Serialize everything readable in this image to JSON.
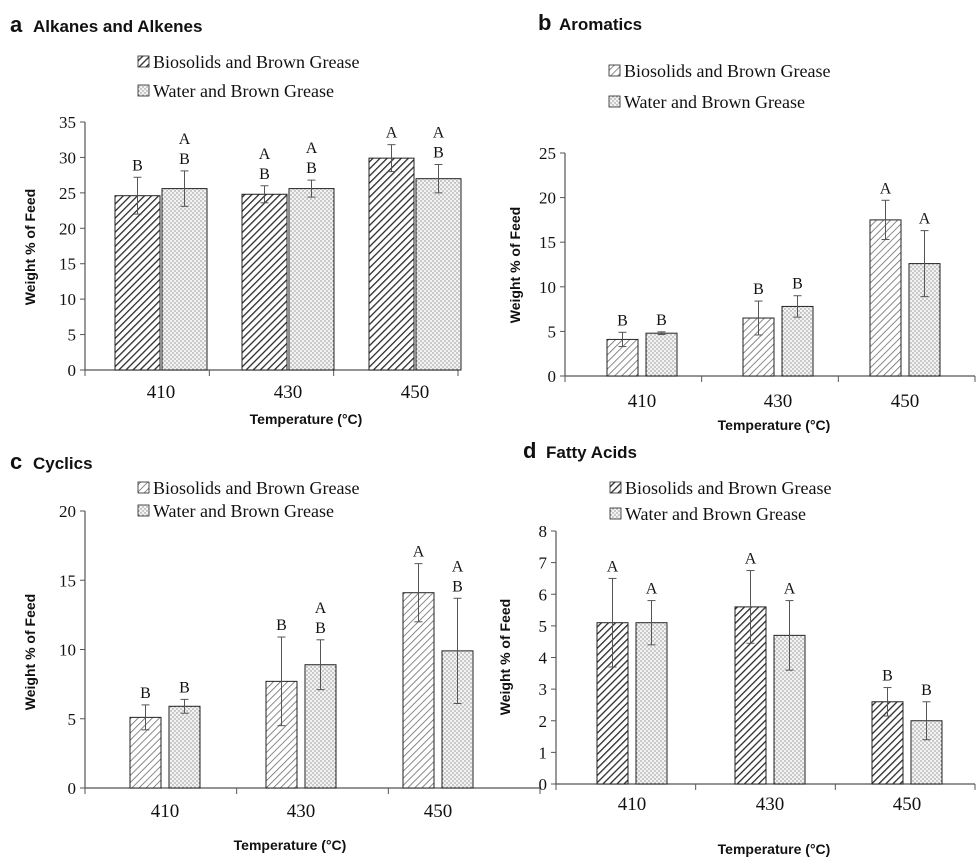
{
  "legend": {
    "series1": "Biosolids and Brown Grease",
    "series2": "Water and Brown Grease"
  },
  "colors": {
    "axis": "#555555",
    "bar_border": "#222222",
    "s1_fill": "#ffffff",
    "s1_dark_hatch": "#2b2b2b",
    "s1_light_hatch": "#6b6b6b",
    "s2_fill": "#f3f3f3",
    "s2_dots": "#8a8a8a",
    "error": "#555555"
  },
  "chart_data": [
    {
      "type": "bar",
      "panel_letter": "a",
      "title": "Alkanes and Alkenes",
      "xlabel": "Temperature (°C)",
      "ylabel": "Weight % of Feed",
      "categories": [
        "410",
        "430",
        "450"
      ],
      "ylim": [
        0,
        35
      ],
      "yticks": [
        "0",
        "5",
        "10",
        "15",
        "20",
        "25",
        "30",
        "35"
      ],
      "grid": false,
      "legend_position": "top",
      "series": [
        {
          "name": "Biosolids and Brown Grease",
          "values": [
            24.6,
            24.8,
            29.9
          ],
          "errors": [
            2.6,
            1.2,
            1.9
          ],
          "sig": [
            [
              "B"
            ],
            [
              "A",
              "B"
            ],
            [
              "A"
            ]
          ]
        },
        {
          "name": "Water and Brown Grease",
          "values": [
            25.6,
            25.6,
            27.0
          ],
          "errors": [
            2.5,
            1.2,
            2.0
          ],
          "sig": [
            [
              "A",
              "B"
            ],
            [
              "A",
              "B"
            ],
            [
              "A",
              "B"
            ]
          ]
        }
      ]
    },
    {
      "type": "bar",
      "panel_letter": "b",
      "title": "Aromatics",
      "xlabel": "Temperature (°C)",
      "ylabel": "Weight % of Feed",
      "categories": [
        "410",
        "430",
        "450"
      ],
      "ylim": [
        0,
        25
      ],
      "yticks": [
        "0",
        "5",
        "10",
        "15",
        "20",
        "25"
      ],
      "grid": false,
      "legend_position": "top",
      "series": [
        {
          "name": "Biosolids and Brown Grease",
          "values": [
            4.1,
            6.5,
            17.5
          ],
          "errors": [
            0.8,
            1.9,
            2.2
          ],
          "sig": [
            [
              "B"
            ],
            [
              "B"
            ],
            [
              "A"
            ]
          ]
        },
        {
          "name": "Water and Brown Grease",
          "values": [
            4.8,
            7.8,
            12.6
          ],
          "errors": [
            0.15,
            1.2,
            3.7
          ],
          "sig": [
            [
              "B"
            ],
            [
              "B"
            ],
            [
              "A"
            ]
          ]
        }
      ]
    },
    {
      "type": "bar",
      "panel_letter": "c",
      "title": "Cyclics",
      "xlabel": "Temperature (°C)",
      "ylabel": "Weight % of Feed",
      "categories": [
        "410",
        "430",
        "450"
      ],
      "ylim": [
        0,
        20
      ],
      "yticks": [
        "0",
        "5",
        "10",
        "15",
        "20"
      ],
      "grid": false,
      "legend_position": "top",
      "series": [
        {
          "name": "Biosolids and Brown Grease",
          "values": [
            5.1,
            7.7,
            14.1
          ],
          "errors": [
            0.9,
            3.2,
            2.1
          ],
          "sig": [
            [
              "B"
            ],
            [
              "B"
            ],
            [
              "A"
            ]
          ]
        },
        {
          "name": "Water and Brown Grease",
          "values": [
            5.9,
            8.9,
            9.9
          ],
          "errors": [
            0.5,
            1.8,
            3.8
          ],
          "sig": [
            [
              "B"
            ],
            [
              "A",
              "B"
            ],
            [
              "A",
              "B"
            ]
          ]
        }
      ]
    },
    {
      "type": "bar",
      "panel_letter": "d",
      "title": "Fatty Acids",
      "xlabel": "Temperature (°C)",
      "ylabel": "Weight % of Feed",
      "categories": [
        "410",
        "430",
        "450"
      ],
      "ylim": [
        0,
        8
      ],
      "yticks": [
        "0",
        "1",
        "2",
        "3",
        "4",
        "5",
        "6",
        "7",
        "8"
      ],
      "grid": false,
      "legend_position": "top",
      "series": [
        {
          "name": "Biosolids and Brown Grease",
          "values": [
            5.1,
            5.6,
            2.6
          ],
          "errors": [
            1.4,
            1.15,
            0.45
          ],
          "sig": [
            [
              "A"
            ],
            [
              "A"
            ],
            [
              "B"
            ]
          ]
        },
        {
          "name": "Water and Brown Grease",
          "values": [
            5.1,
            4.7,
            2.0
          ],
          "errors": [
            0.7,
            1.1,
            0.6
          ],
          "sig": [
            [
              "A"
            ],
            [
              "A"
            ],
            [
              "B"
            ]
          ]
        }
      ]
    }
  ]
}
